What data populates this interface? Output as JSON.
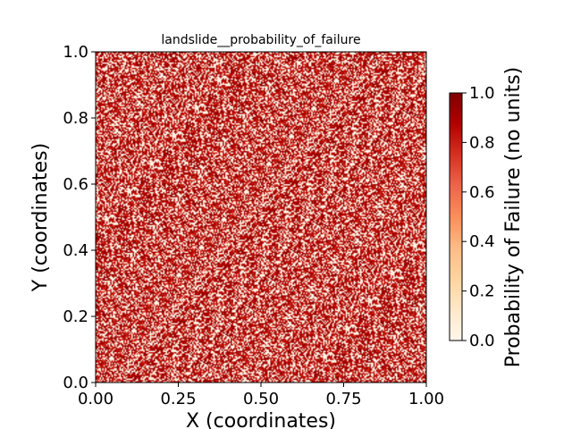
{
  "chart_data": {
    "type": "heatmap",
    "title": "landslide__probability_of_failure",
    "xlabel": "X (coordinates)",
    "ylabel": "Y (coordinates)",
    "xlim": [
      0.0,
      1.0
    ],
    "ylim": [
      0.0,
      1.0
    ],
    "x_ticks": [
      "0.00",
      "0.25",
      "0.50",
      "0.75",
      "1.00"
    ],
    "y_ticks": [
      "0.0",
      "0.2",
      "0.4",
      "0.6",
      "0.8",
      "1.0"
    ],
    "colorbar": {
      "label": "Probability of Failure (no units)",
      "range": [
        0.0,
        1.0
      ],
      "ticks": [
        "0.0",
        "0.2",
        "0.4",
        "0.6",
        "0.8",
        "1.0"
      ],
      "colormap": "OrRd",
      "colors": [
        "#fff7ec",
        "#fee8c8",
        "#fdd49e",
        "#fdbb84",
        "#fc8d59",
        "#ef6548",
        "#d7301f",
        "#b30000",
        "#7f0000"
      ]
    },
    "field": {
      "description_values": "noisy per-cell probability; cells are mostly either near 0.0 or near 0.8-1.0",
      "low_value_fraction": 0.35,
      "high_value_range": [
        0.75,
        1.0
      ],
      "low_value_range": [
        0.0,
        0.05
      ],
      "grid_cells": 250
    },
    "grid": false
  }
}
